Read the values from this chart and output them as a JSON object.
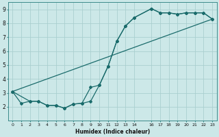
{
  "xlabel": "Humidex (Indice chaleur)",
  "bg_color": "#cce8e8",
  "grid_color": "#aacfcf",
  "line_color": "#1a6b6b",
  "xlim": [
    -0.5,
    23.5
  ],
  "ylim": [
    1.5,
    9.5
  ],
  "xtick_vals": [
    0,
    1,
    2,
    3,
    4,
    5,
    6,
    7,
    8,
    9,
    10,
    11,
    12,
    13,
    14,
    16,
    17,
    18,
    19,
    20,
    21,
    22,
    23
  ],
  "xtick_labels": [
    "0",
    "1",
    "2",
    "3",
    "4",
    "5",
    "6",
    "7",
    "8",
    "9",
    "10",
    "11",
    "12",
    "13",
    "14",
    "16",
    "17",
    "18",
    "19",
    "20",
    "21",
    "22",
    "23"
  ],
  "ytick_vals": [
    2,
    3,
    4,
    5,
    6,
    7,
    8,
    9
  ],
  "ytick_labels": [
    "2",
    "3",
    "4",
    "5",
    "6",
    "7",
    "8",
    "9"
  ],
  "series1_x": [
    0,
    1,
    2,
    3,
    4,
    5,
    6,
    7,
    8,
    9,
    10,
    11,
    12,
    13,
    14,
    16,
    17,
    18,
    19,
    20,
    21,
    22,
    23
  ],
  "series1_y": [
    3.1,
    2.25,
    2.4,
    2.4,
    2.1,
    2.1,
    1.9,
    2.2,
    2.25,
    3.4,
    3.55,
    4.9,
    6.7,
    7.8,
    8.4,
    9.05,
    8.75,
    8.75,
    8.65,
    8.75,
    8.75,
    8.75,
    8.3
  ],
  "series2_x": [
    0,
    23
  ],
  "series2_y": [
    3.1,
    8.3
  ],
  "series3_x": [
    0,
    2,
    3,
    4,
    5,
    6,
    7,
    8,
    9,
    10,
    11,
    12,
    13,
    14,
    16,
    17,
    18,
    19,
    20,
    21,
    22,
    23
  ],
  "series3_y": [
    3.1,
    2.4,
    2.4,
    2.1,
    2.1,
    1.9,
    2.2,
    2.25,
    2.4,
    3.55,
    4.9,
    6.7,
    7.8,
    8.4,
    9.05,
    8.75,
    8.75,
    8.65,
    8.75,
    8.75,
    8.75,
    8.3
  ]
}
